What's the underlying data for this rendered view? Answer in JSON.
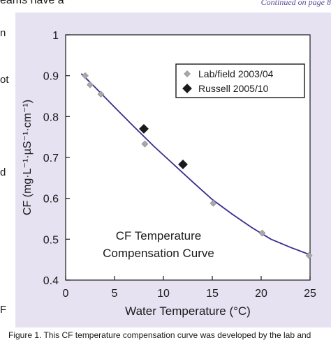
{
  "page_fragments": {
    "top_left": "eams have a",
    "top_right": "Continued on page 8",
    "left_letters": [
      "n",
      "ot",
      "d",
      "F"
    ],
    "bottom": "Figure 1. This CF temperature compensation curve was developed by the lab and"
  },
  "chart_data": {
    "type": "scatter",
    "title": "",
    "annotation_lines": [
      "CF Temperature",
      "Compensation Curve"
    ],
    "xlabel": "Water Temperature (°C)",
    "ylabel": "CF (mg·L⁻¹·µS⁻¹·cm⁻¹)",
    "xlim": [
      0,
      25
    ],
    "ylim": [
      0.4,
      1.0
    ],
    "x_ticks": [
      0,
      5,
      10,
      15,
      20,
      25
    ],
    "y_ticks": [
      0.4,
      0.5,
      0.6,
      0.7,
      0.8,
      0.9,
      1.0
    ],
    "y_tick_labels": [
      "0.4",
      "0.5",
      "0.6",
      "0.7",
      "0.8",
      "0.9",
      "1"
    ],
    "legend_position": "top-right",
    "grid": false,
    "series": [
      {
        "name": "Lab/field 2003/04",
        "marker": "diamond-small",
        "color": "#a8a8a8",
        "points": [
          [
            2,
            0.9
          ],
          [
            2.5,
            0.878
          ],
          [
            3.6,
            0.855
          ],
          [
            8.1,
            0.733
          ],
          [
            15.1,
            0.588
          ],
          [
            20.1,
            0.515
          ],
          [
            24.9,
            0.46
          ]
        ]
      },
      {
        "name": "Russell 2005/10",
        "marker": "diamond-large",
        "color": "#1a1a1a",
        "points": [
          [
            8,
            0.77
          ],
          [
            12,
            0.683
          ]
        ]
      }
    ],
    "fit_curve": {
      "color": "#3c2a8e",
      "points": [
        [
          1.6,
          0.905
        ],
        [
          3,
          0.872
        ],
        [
          5,
          0.823
        ],
        [
          7,
          0.775
        ],
        [
          9,
          0.728
        ],
        [
          11,
          0.684
        ],
        [
          13,
          0.64
        ],
        [
          15,
          0.597
        ],
        [
          17,
          0.562
        ],
        [
          19,
          0.529
        ],
        [
          21,
          0.5
        ],
        [
          23,
          0.48
        ],
        [
          25,
          0.462
        ]
      ]
    },
    "colors": {
      "panel": "#e6e2f2",
      "plot_bg": "#ffffff",
      "axis": "#1a1a1a"
    }
  }
}
